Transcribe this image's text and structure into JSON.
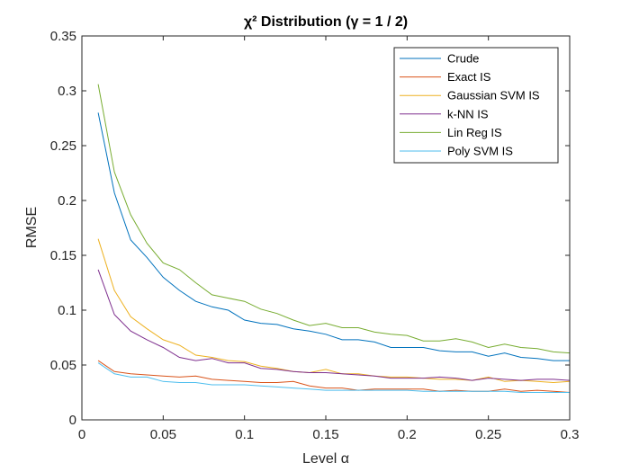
{
  "chart_data": {
    "type": "line",
    "title": "χ² Distribution (γ = 1 / 2)",
    "xlabel": "Level α",
    "ylabel": "RMSE",
    "xlim": [
      0,
      0.3
    ],
    "ylim": [
      0,
      0.35
    ],
    "xticks": [
      "0",
      "0.05",
      "0.1",
      "0.15",
      "0.2",
      "0.25",
      "0.3"
    ],
    "yticks": [
      "0",
      "0.05",
      "0.1",
      "0.15",
      "0.2",
      "0.25",
      "0.3",
      "0.35"
    ],
    "legend_position": "top-right",
    "grid": false,
    "x": [
      0.01,
      0.02,
      0.03,
      0.04,
      0.05,
      0.06,
      0.07,
      0.08,
      0.09,
      0.1,
      0.11,
      0.12,
      0.13,
      0.14,
      0.15,
      0.16,
      0.17,
      0.18,
      0.19,
      0.2,
      0.21,
      0.22,
      0.23,
      0.24,
      0.25,
      0.26,
      0.27,
      0.28,
      0.29,
      0.3
    ],
    "series": [
      {
        "name": "Crude",
        "color": "#0072BD",
        "values": [
          0.28,
          0.207,
          0.164,
          0.148,
          0.13,
          0.118,
          0.108,
          0.103,
          0.1,
          0.091,
          0.088,
          0.087,
          0.083,
          0.081,
          0.078,
          0.073,
          0.073,
          0.071,
          0.066,
          0.066,
          0.066,
          0.063,
          0.062,
          0.062,
          0.058,
          0.061,
          0.057,
          0.056,
          0.054,
          0.054
        ]
      },
      {
        "name": "Exact IS",
        "color": "#D95319",
        "values": [
          0.054,
          0.044,
          0.042,
          0.041,
          0.04,
          0.039,
          0.04,
          0.037,
          0.036,
          0.035,
          0.034,
          0.034,
          0.035,
          0.031,
          0.029,
          0.029,
          0.027,
          0.028,
          0.028,
          0.028,
          0.028,
          0.026,
          0.027,
          0.026,
          0.026,
          0.028,
          0.026,
          0.027,
          0.026,
          0.025
        ]
      },
      {
        "name": "Gaussian SVM IS",
        "color": "#EDB120",
        "values": [
          0.165,
          0.118,
          0.094,
          0.083,
          0.073,
          0.068,
          0.059,
          0.057,
          0.054,
          0.053,
          0.049,
          0.047,
          0.044,
          0.043,
          0.046,
          0.042,
          0.042,
          0.04,
          0.039,
          0.039,
          0.038,
          0.037,
          0.037,
          0.036,
          0.039,
          0.035,
          0.036,
          0.035,
          0.034,
          0.035
        ]
      },
      {
        "name": "k-NN IS",
        "color": "#7E2F8E",
        "values": [
          0.137,
          0.096,
          0.081,
          0.073,
          0.066,
          0.057,
          0.054,
          0.056,
          0.052,
          0.052,
          0.047,
          0.046,
          0.044,
          0.043,
          0.043,
          0.042,
          0.041,
          0.04,
          0.038,
          0.038,
          0.038,
          0.039,
          0.038,
          0.036,
          0.038,
          0.037,
          0.036,
          0.037,
          0.037,
          0.036
        ]
      },
      {
        "name": "Lin Reg IS",
        "color": "#77AC30",
        "values": [
          0.306,
          0.226,
          0.187,
          0.161,
          0.143,
          0.137,
          0.125,
          0.114,
          0.111,
          0.108,
          0.101,
          0.097,
          0.091,
          0.086,
          0.088,
          0.084,
          0.084,
          0.08,
          0.078,
          0.077,
          0.072,
          0.072,
          0.074,
          0.071,
          0.066,
          0.069,
          0.066,
          0.065,
          0.062,
          0.061
        ]
      },
      {
        "name": "Poly SVM IS",
        "color": "#4DBEEE",
        "values": [
          0.052,
          0.042,
          0.039,
          0.039,
          0.035,
          0.034,
          0.034,
          0.032,
          0.032,
          0.032,
          0.031,
          0.03,
          0.029,
          0.028,
          0.027,
          0.027,
          0.027,
          0.027,
          0.027,
          0.027,
          0.026,
          0.026,
          0.026,
          0.026,
          0.026,
          0.026,
          0.025,
          0.025,
          0.025,
          0.025
        ]
      }
    ]
  }
}
